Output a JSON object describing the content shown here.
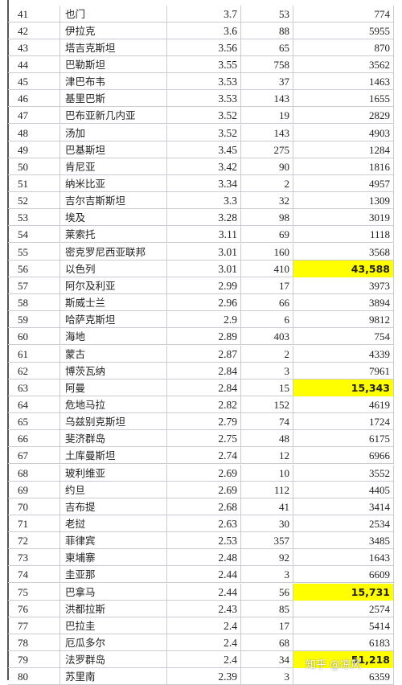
{
  "table": {
    "rows": [
      [
        "41",
        "也门",
        "3.7",
        "53",
        "774"
      ],
      [
        "42",
        "伊拉克",
        "3.6",
        "88",
        "5955"
      ],
      [
        "43",
        "塔吉克斯坦",
        "3.56",
        "65",
        "870"
      ],
      [
        "44",
        "巴勒斯坦",
        "3.55",
        "758",
        "3562"
      ],
      [
        "45",
        "津巴布韦",
        "3.53",
        "37",
        "1463"
      ],
      [
        "46",
        "基里巴斯",
        "3.53",
        "143",
        "1655"
      ],
      [
        "47",
        "巴布亚新几内亚",
        "3.52",
        "19",
        "2829"
      ],
      [
        "48",
        "汤加",
        "3.52",
        "143",
        "4903"
      ],
      [
        "49",
        "巴基斯坦",
        "3.45",
        "275",
        "1284"
      ],
      [
        "50",
        "肯尼亚",
        "3.42",
        "90",
        "1816"
      ],
      [
        "51",
        "纳米比亚",
        "3.34",
        "2",
        "4957"
      ],
      [
        "52",
        "吉尔吉斯斯坦",
        "3.3",
        "32",
        "1309"
      ],
      [
        "53",
        "埃及",
        "3.28",
        "98",
        "3019"
      ],
      [
        "54",
        "莱索托",
        "3.11",
        "69",
        "1118"
      ],
      [
        "55",
        "密克罗尼西亚联邦",
        "3.01",
        "160",
        "3568"
      ],
      [
        "56",
        "以色列",
        "3.01",
        "410",
        "43,588"
      ],
      [
        "57",
        "阿尔及利亚",
        "2.99",
        "17",
        "3973"
      ],
      [
        "58",
        "斯威士兰",
        "2.96",
        "66",
        "3894"
      ],
      [
        "59",
        "哈萨克斯坦",
        "2.9",
        "6",
        "9812"
      ],
      [
        "60",
        "海地",
        "2.89",
        "403",
        "754"
      ],
      [
        "61",
        "蒙古",
        "2.87",
        "2",
        "4339"
      ],
      [
        "62",
        "博茨瓦纳",
        "2.84",
        "3",
        "7961"
      ],
      [
        "63",
        "阿曼",
        "2.84",
        "15",
        "15,343"
      ],
      [
        "64",
        "危地马拉",
        "2.82",
        "152",
        "4619"
      ],
      [
        "65",
        "乌兹别克斯坦",
        "2.79",
        "74",
        "1724"
      ],
      [
        "66",
        "斐济群岛",
        "2.75",
        "48",
        "6175"
      ],
      [
        "67",
        "土库曼斯坦",
        "2.74",
        "12",
        "6966"
      ],
      [
        "68",
        "玻利维亚",
        "2.69",
        "10",
        "3552"
      ],
      [
        "69",
        "约旦",
        "2.69",
        "112",
        "4405"
      ],
      [
        "70",
        "吉布提",
        "2.68",
        "41",
        "3414"
      ],
      [
        "71",
        "老挝",
        "2.63",
        "30",
        "2534"
      ],
      [
        "72",
        "菲律宾",
        "2.53",
        "357",
        "3485"
      ],
      [
        "73",
        "柬埔寨",
        "2.48",
        "92",
        "1643"
      ],
      [
        "74",
        "圭亚那",
        "2.44",
        "3",
        "6609"
      ],
      [
        "75",
        "巴拿马",
        "2.44",
        "56",
        "15,731"
      ],
      [
        "76",
        "洪都拉斯",
        "2.43",
        "85",
        "2574"
      ],
      [
        "77",
        "巴拉圭",
        "2.4",
        "17",
        "5414"
      ],
      [
        "78",
        "厄瓜多尔",
        "2.4",
        "68",
        "6183"
      ],
      [
        "79",
        "法罗群岛",
        "2.4",
        "34",
        "51,218"
      ],
      [
        "80",
        "苏里南",
        "2.39",
        "3",
        "6359"
      ]
    ]
  },
  "watermark": "知乎 @凉风"
}
